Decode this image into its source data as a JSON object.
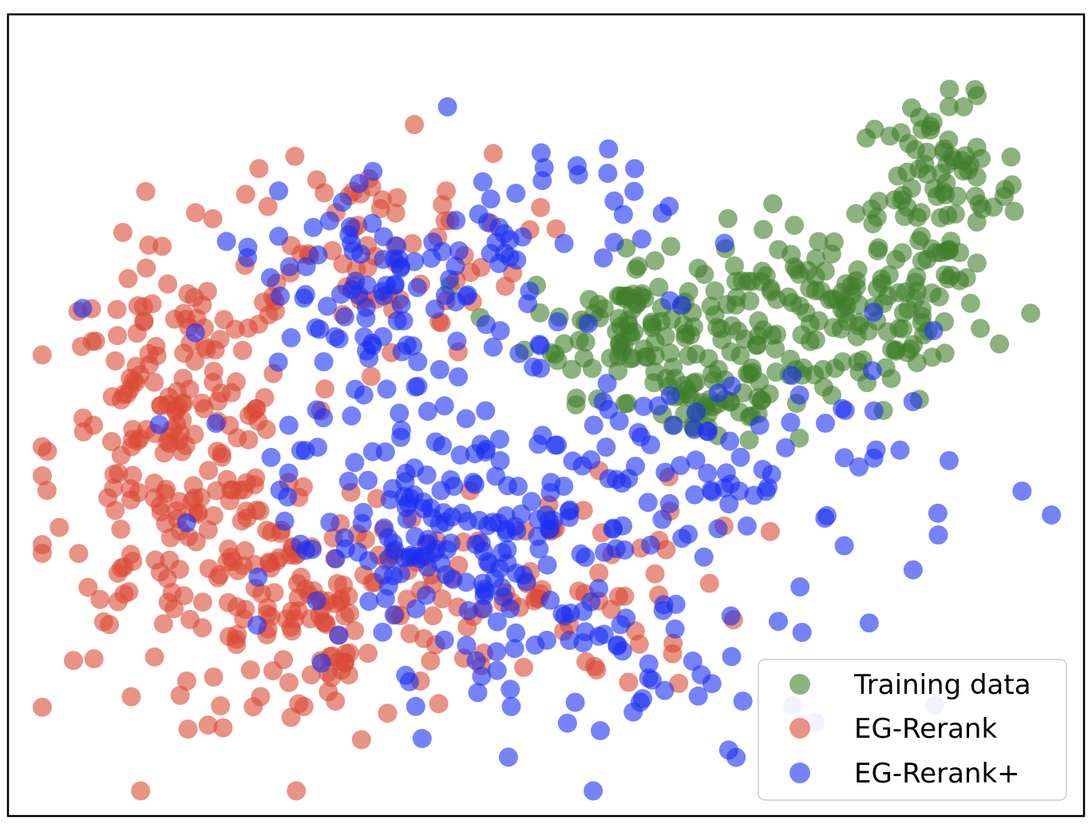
{
  "chart_data": {
    "type": "scatter",
    "title": "",
    "xlabel": "",
    "ylabel": "",
    "axes_visible": false,
    "grid": false,
    "xlim": [
      0,
      100
    ],
    "ylim": [
      0,
      100
    ],
    "legend": {
      "position": "bottom-right",
      "entries": [
        "Training data",
        "EG-Rerank",
        "EG-Rerank+"
      ]
    },
    "series": [
      {
        "name": "Training data",
        "color": "#3f7f2a",
        "clusters": [
          {
            "cx": 77,
            "cy": 63,
            "sx": 8,
            "sy": 6,
            "n": 160
          },
          {
            "cx": 58,
            "cy": 62,
            "sx": 5,
            "sy": 4.5,
            "n": 90
          },
          {
            "cx": 88,
            "cy": 79,
            "sx": 4,
            "sy": 6,
            "n": 90
          },
          {
            "cx": 66,
            "cy": 52,
            "sx": 4,
            "sy": 3,
            "n": 40
          }
        ]
      },
      {
        "name": "EG-Rerank",
        "color": "#db4a35",
        "clusters": [
          {
            "cx": 14,
            "cy": 45,
            "sx": 6,
            "sy": 13,
            "n": 220
          },
          {
            "cx": 27,
            "cy": 24,
            "sx": 7,
            "sy": 9,
            "n": 110
          },
          {
            "cx": 32,
            "cy": 72,
            "sx": 8,
            "sy": 7,
            "n": 70
          },
          {
            "cx": 45,
            "cy": 28,
            "sx": 12,
            "sy": 7,
            "n": 90
          }
        ]
      },
      {
        "name": "EG-Rerank+",
        "color": "#1a2ef2",
        "clusters": [
          {
            "cx": 42,
            "cy": 33,
            "sx": 9,
            "sy": 8,
            "n": 180
          },
          {
            "cx": 35,
            "cy": 63,
            "sx": 8,
            "sy": 8,
            "n": 110
          },
          {
            "cx": 48,
            "cy": 75,
            "sx": 7,
            "sy": 7,
            "n": 40
          },
          {
            "cx": 68,
            "cy": 43,
            "sx": 12,
            "sy": 8,
            "n": 90
          },
          {
            "cx": 58,
            "cy": 15,
            "sx": 10,
            "sy": 7,
            "n": 40
          }
        ]
      }
    ]
  }
}
